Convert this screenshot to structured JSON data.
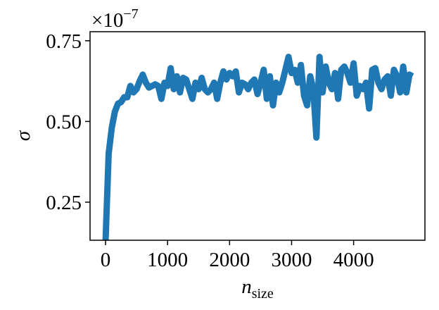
{
  "chart_data": {
    "type": "line",
    "ylabel": "σ",
    "xlabel": {
      "main": "n",
      "sub": "size"
    },
    "offset_text": {
      "base": "×10",
      "exponent": "−7"
    },
    "x": [
      0,
      50,
      100,
      150,
      200,
      250,
      300,
      350,
      400,
      450,
      500,
      550,
      600,
      650,
      700,
      750,
      800,
      850,
      900,
      950,
      1000,
      1050,
      1100,
      1150,
      1200,
      1250,
      1300,
      1350,
      1400,
      1450,
      1500,
      1550,
      1600,
      1650,
      1700,
      1750,
      1800,
      1850,
      1900,
      1950,
      2000,
      2050,
      2100,
      2150,
      2200,
      2250,
      2300,
      2350,
      2400,
      2450,
      2500,
      2550,
      2600,
      2650,
      2700,
      2750,
      2800,
      2850,
      2900,
      2950,
      3000,
      3050,
      3100,
      3150,
      3200,
      3250,
      3300,
      3350,
      3400,
      3450,
      3500,
      3550,
      3600,
      3650,
      3700,
      3750,
      3800,
      3850,
      3900,
      3950,
      4000,
      4050,
      4100,
      4150,
      4200,
      4250,
      4300,
      4350,
      4400,
      4450,
      4500,
      4550,
      4600,
      4650,
      4700,
      4750,
      4800,
      4850,
      4900,
      4950
    ],
    "series": [
      {
        "color": "#1f77b4",
        "values": [
          0.13,
          0.4,
          0.48,
          0.53,
          0.555,
          0.56,
          0.575,
          0.575,
          0.61,
          0.59,
          0.6,
          0.625,
          0.645,
          0.62,
          0.605,
          0.61,
          0.615,
          0.61,
          0.57,
          0.62,
          0.61,
          0.665,
          0.6,
          0.64,
          0.59,
          0.635,
          0.63,
          0.6,
          0.57,
          0.62,
          0.6,
          0.635,
          0.6,
          0.59,
          0.6,
          0.62,
          0.57,
          0.62,
          0.655,
          0.63,
          0.65,
          0.64,
          0.655,
          0.59,
          0.62,
          0.615,
          0.6,
          0.62,
          0.63,
          0.585,
          0.62,
          0.66,
          0.57,
          0.64,
          0.55,
          0.62,
          0.59,
          0.62,
          0.66,
          0.7,
          0.65,
          0.66,
          0.62,
          0.675,
          0.58,
          0.55,
          0.64,
          0.6,
          0.45,
          0.7,
          0.59,
          0.67,
          0.62,
          0.6,
          0.65,
          0.57,
          0.66,
          0.67,
          0.65,
          0.62,
          0.68,
          0.58,
          0.61,
          0.6,
          0.62,
          0.54,
          0.66,
          0.665,
          0.62,
          0.6,
          0.63,
          0.64,
          0.58,
          0.66,
          0.64,
          0.59,
          0.67,
          0.59,
          0.645,
          0.64
        ]
      }
    ],
    "xlim": [
      -250,
      5150
    ],
    "ylim": [
      0.132,
      0.778
    ],
    "xticks": [
      0,
      1000,
      2000,
      3000,
      4000
    ],
    "yticks": [
      0.25,
      {
        "value": 0.5,
        "label": "0.50"
      },
      0.75
    ]
  }
}
